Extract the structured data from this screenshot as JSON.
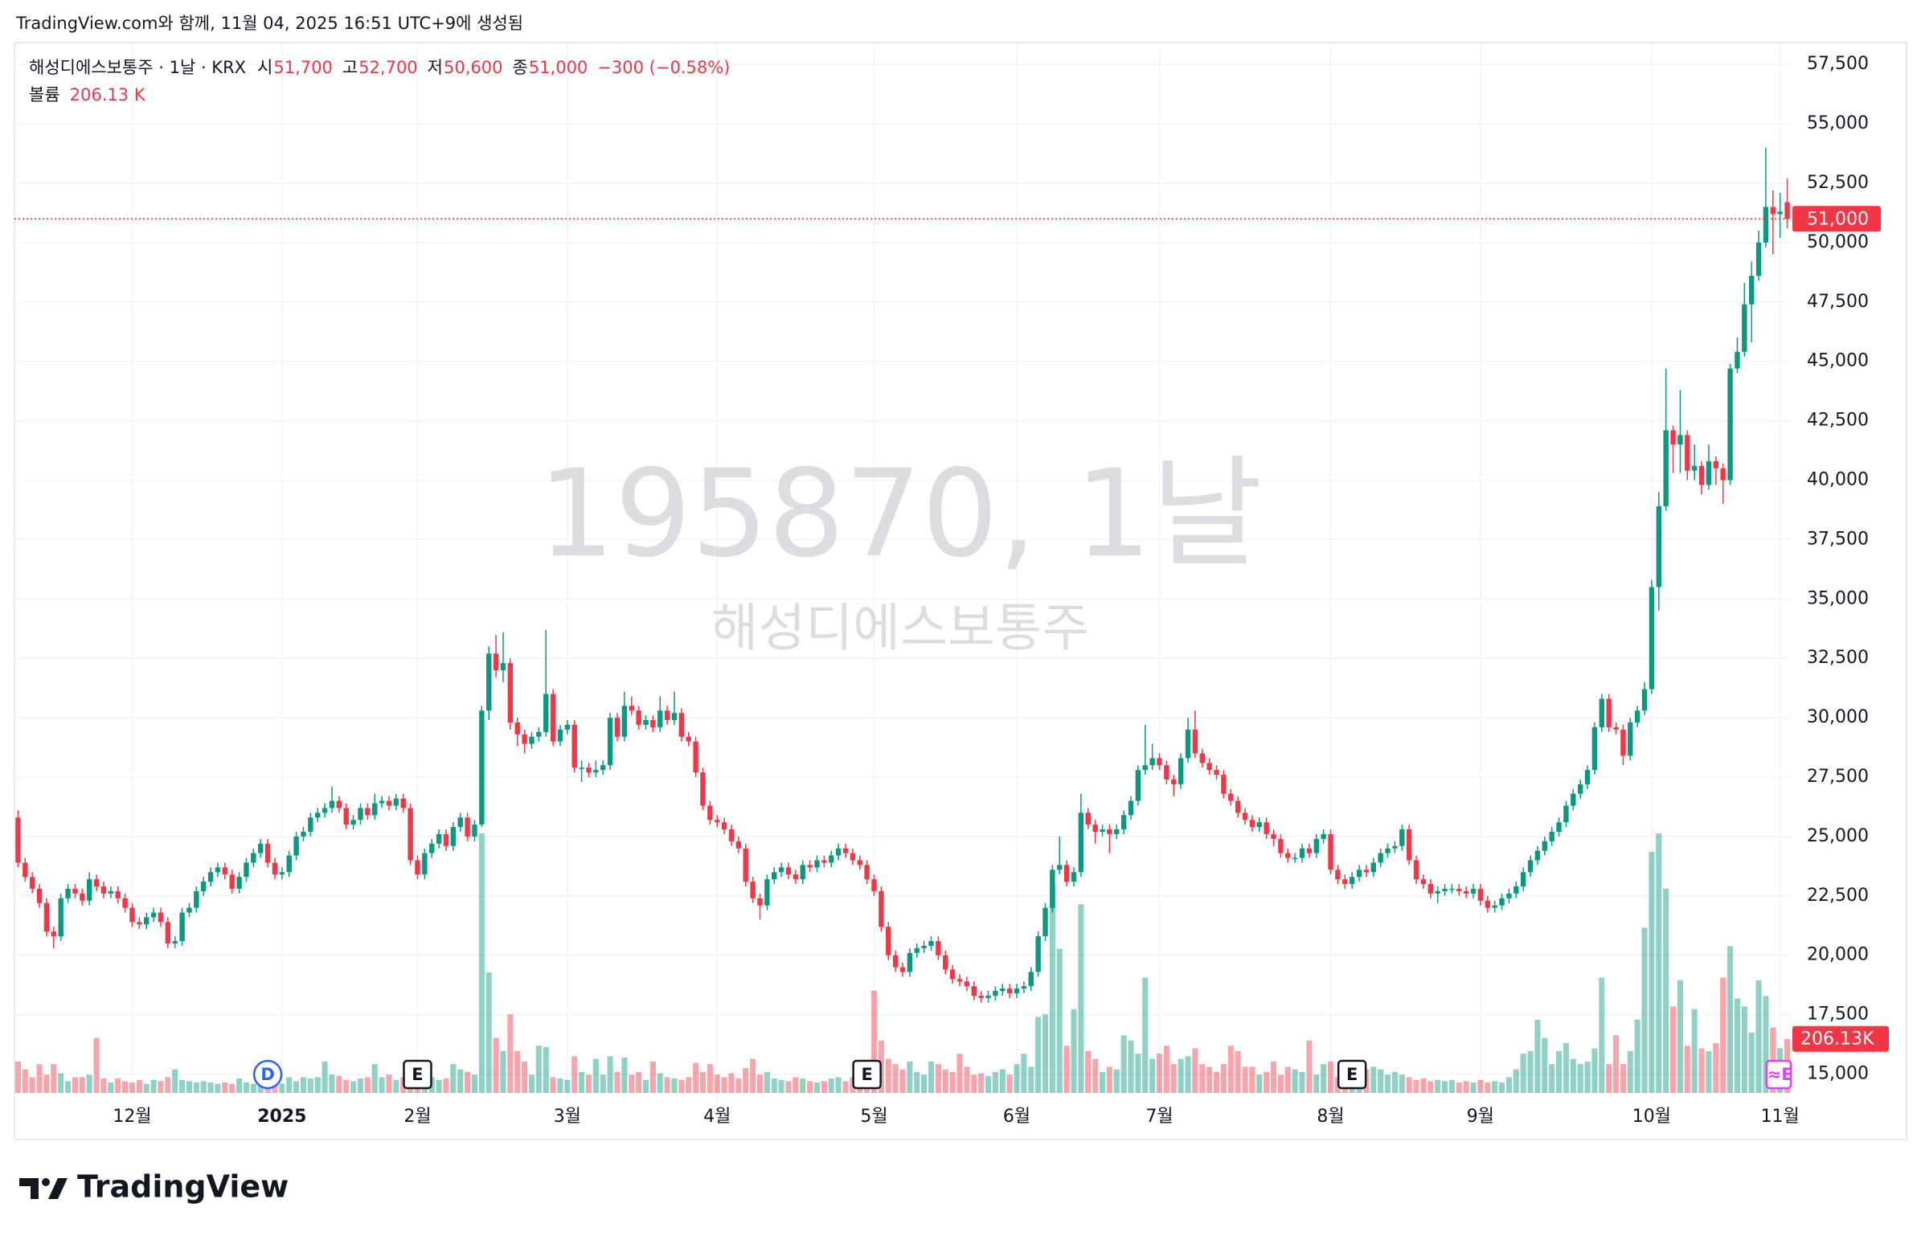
{
  "caption": "TradingView.com와 함께, 11월 04, 2025 16:51 UTC+9에 생성됨",
  "brand": "TradingView",
  "chart_data": {
    "type": "candlestick",
    "title": "해성디에스보통주 · 1날 · KRX",
    "watermark": "195870, 1날",
    "watermark_subtitle": "해성디에스보통주",
    "ohlc_legend": [
      {
        "prefix": "시",
        "label": "51,700"
      },
      {
        "prefix": "고",
        "label": "52,700"
      },
      {
        "prefix": "저",
        "label": "50,600"
      },
      {
        "prefix": "종",
        "label": "51,000"
      }
    ],
    "change_label": "−300 (−0.58%)",
    "volume_name": "볼륨",
    "volume_legend_label": "206.13 K",
    "volume_axis_label": "206.13K",
    "last_price_label": "51,000",
    "up_color": "#089981",
    "down_color": "#f23645",
    "grid": true,
    "xlim": [
      -0.5,
      248.5
    ],
    "ylim": [
      13800,
      58350
    ],
    "yticks": [
      {
        "value": 15000,
        "label": "15,000"
      },
      {
        "value": 17500,
        "label": "17,500"
      },
      {
        "value": 20000,
        "label": "20,000"
      },
      {
        "value": 22500,
        "label": "22,500"
      },
      {
        "value": 25000,
        "label": "25,000"
      },
      {
        "value": 27500,
        "label": "27,500"
      },
      {
        "value": 30000,
        "label": "30,000"
      },
      {
        "value": 32500,
        "label": "32,500"
      },
      {
        "value": 35000,
        "label": "35,000"
      },
      {
        "value": 37500,
        "label": "37,500"
      },
      {
        "value": 40000,
        "label": "40,000"
      },
      {
        "value": 42500,
        "label": "42,500"
      },
      {
        "value": 45000,
        "label": "45,000"
      },
      {
        "value": 47500,
        "label": "47,500"
      },
      {
        "value": 50000,
        "label": "50,000"
      },
      {
        "value": 52500,
        "label": "52,500"
      },
      {
        "value": 55000,
        "label": "55,000"
      },
      {
        "value": 57500,
        "label": "57,500"
      }
    ],
    "xticks": [
      {
        "value": 16,
        "label": "12월"
      },
      {
        "value": 37,
        "label": "2025"
      },
      {
        "value": 56,
        "label": "2월"
      },
      {
        "value": 77,
        "label": "3월"
      },
      {
        "value": 98,
        "label": "4월"
      },
      {
        "value": 120,
        "label": "5월"
      },
      {
        "value": 140,
        "label": "6월"
      },
      {
        "value": 160,
        "label": "7월"
      },
      {
        "value": 184,
        "label": "8월"
      },
      {
        "value": 205,
        "label": "9월"
      },
      {
        "value": 229,
        "label": "10월"
      },
      {
        "value": 247,
        "label": "11월"
      }
    ],
    "events": [
      {
        "label": "D",
        "index": 35,
        "color": "#2962ff"
      },
      {
        "label": "E",
        "index": 56,
        "color": "#131722"
      },
      {
        "label": "E",
        "index": 119,
        "color": "#131722"
      },
      {
        "label": "E",
        "index": 187,
        "color": "#131722"
      },
      {
        "label": "≈E",
        "index": 247,
        "color": "#e040fb"
      }
    ],
    "open": [
      25800,
      23900,
      23300,
      22800,
      22200,
      21000,
      20800,
      22400,
      22800,
      22600,
      22300,
      23200,
      22900,
      22600,
      22700,
      22400,
      22000,
      21400,
      21300,
      21600,
      21800,
      21400,
      20500,
      20600,
      21800,
      22000,
      22700,
      23100,
      23500,
      23700,
      23400,
      22800,
      23300,
      23900,
      24300,
      24700,
      23900,
      23400,
      23500,
      24200,
      25000,
      25200,
      25800,
      26000,
      26200,
      26500,
      26200,
      25500,
      25700,
      26200,
      25900,
      26400,
      26500,
      26300,
      26600,
      26200,
      24000,
      23400,
      24300,
      24700,
      25100,
      24600,
      25400,
      25800,
      25000,
      25500,
      30300,
      32700,
      32000,
      32300,
      29800,
      29300,
      28900,
      29200,
      29400,
      31000,
      29000,
      29500,
      29700,
      27900,
      27900,
      27700,
      27800,
      28000,
      30000,
      29200,
      30500,
      30300,
      29700,
      29900,
      29600,
      30300,
      29900,
      30200,
      29200,
      29000,
      27700,
      26300,
      25700,
      25600,
      25300,
      24800,
      24500,
      23100,
      22400,
      22100,
      23200,
      23500,
      23700,
      23400,
      23200,
      23800,
      23700,
      24000,
      23900,
      24200,
      24500,
      24300,
      24000,
      23800,
      23200,
      22700,
      21200,
      20000,
      19500,
      19300,
      20100,
      20300,
      20400,
      20600,
      20000,
      19400,
      19000,
      18900,
      18700,
      18300,
      18200,
      18300,
      18500,
      18600,
      18400,
      18600,
      18700,
      19300,
      20800,
      22000,
      23600,
      23800,
      23100,
      23500,
      26000,
      25500,
      25200,
      25300,
      25100,
      25300,
      25900,
      26500,
      27800,
      28000,
      28300,
      28000,
      27400,
      27200,
      28300,
      29500,
      28500,
      28100,
      27800,
      27600,
      26800,
      26500,
      26000,
      25700,
      25400,
      25600,
      25100,
      24900,
      24300,
      24100,
      24100,
      24500,
      24300,
      24900,
      25100,
      23600,
      23200,
      23000,
      23300,
      23600,
      23500,
      23900,
      24300,
      24500,
      24600,
      25300,
      24000,
      23200,
      23000,
      22600,
      22700,
      22800,
      22800,
      22700,
      22600,
      22800,
      22300,
      22000,
      22100,
      22400,
      22600,
      22900,
      23500,
      24000,
      24400,
      24800,
      25200,
      25600,
      26300,
      26800,
      27200,
      27800,
      29600,
      30800,
      29600,
      29500,
      28400,
      29800,
      30300,
      31200,
      35500,
      38900,
      42100,
      41500,
      41900,
      40400,
      40600,
      39800,
      40800,
      40500,
      40000,
      44700,
      45400,
      47400,
      48600,
      50000,
      51500,
      51200,
      51700
    ],
    "high": [
      26100,
      24100,
      23500,
      23000,
      22400,
      21200,
      22600,
      23000,
      23000,
      22800,
      23500,
      23400,
      23100,
      22900,
      22900,
      22600,
      22200,
      21600,
      21800,
      22000,
      22000,
      21600,
      20800,
      22000,
      22200,
      22900,
      23300,
      23700,
      23900,
      23900,
      23600,
      23500,
      24100,
      24500,
      24900,
      24900,
      24100,
      23700,
      24400,
      25200,
      25400,
      26000,
      26200,
      26400,
      27100,
      26700,
      26400,
      25900,
      26400,
      26400,
      26800,
      26700,
      26700,
      26800,
      26800,
      26400,
      24200,
      24500,
      24900,
      25300,
      25300,
      25600,
      26000,
      26000,
      25700,
      30500,
      33000,
      33500,
      33600,
      32500,
      30000,
      29500,
      29400,
      29600,
      33700,
      31200,
      29700,
      29900,
      29900,
      28200,
      28100,
      28200,
      28200,
      30200,
      30200,
      31100,
      30900,
      30500,
      30100,
      30100,
      30900,
      30500,
      31100,
      30400,
      29400,
      29200,
      27900,
      26500,
      25900,
      25800,
      25500,
      25000,
      24700,
      23300,
      22600,
      23400,
      23700,
      23900,
      23900,
      23600,
      24000,
      24000,
      24200,
      24200,
      24400,
      24700,
      24700,
      24500,
      24200,
      24000,
      23400,
      22900,
      21400,
      20200,
      19700,
      20300,
      20500,
      20600,
      20800,
      20800,
      20200,
      19600,
      19200,
      19100,
      18900,
      18500,
      18500,
      18700,
      18800,
      18800,
      18800,
      18900,
      19500,
      21000,
      22200,
      23800,
      25000,
      24000,
      23700,
      26800,
      26200,
      25700,
      25500,
      25500,
      25500,
      26100,
      26700,
      28000,
      29700,
      28900,
      28500,
      28200,
      27600,
      28500,
      30000,
      30300,
      28700,
      28300,
      28000,
      27800,
      27000,
      26700,
      26200,
      25900,
      25800,
      25800,
      25300,
      25100,
      24500,
      24300,
      24700,
      24700,
      25100,
      25300,
      25300,
      23800,
      23400,
      23500,
      23800,
      23800,
      24100,
      24500,
      24700,
      24800,
      25500,
      25500,
      24200,
      23400,
      23200,
      22900,
      23000,
      23000,
      23000,
      22900,
      23000,
      23000,
      22500,
      22300,
      22600,
      22800,
      23100,
      23700,
      24200,
      24600,
      25000,
      25400,
      25800,
      26500,
      27000,
      27400,
      28000,
      29800,
      31000,
      31000,
      29800,
      29700,
      30000,
      30500,
      31500,
      35800,
      39500,
      44700,
      42300,
      43800,
      42100,
      41500,
      40800,
      41500,
      41000,
      40700,
      44900,
      46000,
      48300,
      49200,
      50500,
      54000,
      52200,
      52100,
      52700
    ],
    "low": [
      23700,
      23100,
      22600,
      22000,
      20800,
      20300,
      20600,
      22200,
      22400,
      22100,
      22100,
      22700,
      22400,
      22400,
      22200,
      21800,
      21200,
      21100,
      21100,
      21400,
      21200,
      20300,
      20300,
      20400,
      21600,
      21800,
      22500,
      22900,
      23300,
      23200,
      22600,
      22600,
      23100,
      23700,
      24100,
      23700,
      23200,
      23200,
      23300,
      24000,
      24800,
      25000,
      25600,
      25800,
      26000,
      26000,
      25300,
      25300,
      25500,
      25700,
      25700,
      26200,
      26100,
      26100,
      26000,
      23800,
      23200,
      23200,
      24100,
      24500,
      24400,
      24400,
      25200,
      24800,
      24800,
      25400,
      29900,
      31700,
      31500,
      29500,
      28800,
      28500,
      28700,
      29000,
      29200,
      28800,
      28800,
      29300,
      27700,
      27300,
      27500,
      27500,
      27600,
      27800,
      29000,
      29000,
      30100,
      29500,
      29500,
      29400,
      29400,
      29700,
      29700,
      29000,
      28800,
      27500,
      26100,
      25500,
      25400,
      25100,
      24600,
      24300,
      22900,
      22200,
      21500,
      21900,
      23000,
      23300,
      23200,
      23000,
      23000,
      23500,
      23500,
      23700,
      23700,
      24000,
      24100,
      23800,
      23600,
      23000,
      22500,
      21000,
      19800,
      19300,
      19100,
      19100,
      19900,
      20100,
      20200,
      19800,
      19200,
      18800,
      18700,
      18500,
      18100,
      18000,
      18000,
      18100,
      18300,
      18200,
      18200,
      18400,
      18500,
      19100,
      20600,
      21800,
      23400,
      22900,
      22900,
      23300,
      25300,
      24700,
      25000,
      24300,
      24900,
      25100,
      25700,
      26300,
      27600,
      27800,
      27800,
      27200,
      26700,
      27000,
      28100,
      28300,
      27900,
      27600,
      27400,
      26600,
      26300,
      25800,
      25500,
      25200,
      25200,
      24900,
      24600,
      24100,
      23900,
      23900,
      23900,
      24100,
      24100,
      24700,
      23400,
      23000,
      22800,
      22800,
      23100,
      23300,
      23300,
      23700,
      24100,
      24300,
      24400,
      23800,
      23000,
      22800,
      22400,
      22200,
      22500,
      22600,
      22500,
      22400,
      22400,
      22100,
      21800,
      21800,
      21900,
      22200,
      22400,
      22700,
      23300,
      23800,
      24200,
      24600,
      25000,
      25400,
      26100,
      26600,
      27000,
      27600,
      29400,
      29400,
      29300,
      28000,
      28200,
      29600,
      30100,
      31000,
      34500,
      38700,
      40300,
      40300,
      40000,
      40000,
      39400,
      39600,
      39800,
      39000,
      39800,
      44500,
      45200,
      45800,
      48400,
      49800,
      49500,
      50200,
      50600
    ],
    "close": [
      23900,
      23300,
      22800,
      22200,
      21000,
      20800,
      22400,
      22800,
      22600,
      22300,
      23200,
      22900,
      22600,
      22700,
      22400,
      22000,
      21400,
      21300,
      21600,
      21800,
      21400,
      20500,
      20600,
      21800,
      22000,
      22700,
      23100,
      23500,
      23700,
      23400,
      22800,
      23300,
      23900,
      24300,
      24700,
      23900,
      23400,
      23500,
      24200,
      25000,
      25200,
      25800,
      26000,
      26200,
      26500,
      26200,
      25500,
      25700,
      26200,
      25900,
      26400,
      26500,
      26300,
      26600,
      26200,
      24000,
      23400,
      24300,
      24700,
      25100,
      24600,
      25400,
      25800,
      25000,
      25500,
      30300,
      32700,
      32000,
      32300,
      29800,
      29300,
      28900,
      29200,
      29400,
      31000,
      29000,
      29500,
      29700,
      27900,
      27900,
      27700,
      27800,
      28000,
      30000,
      29200,
      30500,
      30300,
      29700,
      29900,
      29600,
      30300,
      29900,
      30200,
      29200,
      29000,
      27700,
      26300,
      25700,
      25600,
      25300,
      24800,
      24500,
      23100,
      22400,
      22100,
      23200,
      23500,
      23700,
      23400,
      23200,
      23800,
      23700,
      24000,
      23900,
      24200,
      24500,
      24300,
      24000,
      23800,
      23200,
      22700,
      21200,
      20000,
      19500,
      19300,
      20100,
      20300,
      20400,
      20600,
      20000,
      19400,
      19000,
      18900,
      18700,
      18300,
      18200,
      18300,
      18500,
      18600,
      18400,
      18600,
      18700,
      19300,
      20800,
      22000,
      23600,
      23800,
      23100,
      23500,
      26000,
      25500,
      25200,
      25300,
      25100,
      25300,
      25900,
      26500,
      27800,
      28000,
      28300,
      28000,
      27400,
      27200,
      28300,
      29500,
      28500,
      28100,
      27800,
      27600,
      26800,
      26500,
      26000,
      25700,
      25400,
      25600,
      25100,
      24900,
      24300,
      24100,
      24100,
      24500,
      24300,
      24900,
      25100,
      23600,
      23200,
      23000,
      23300,
      23600,
      23500,
      23900,
      24300,
      24500,
      24600,
      25300,
      24000,
      23200,
      23000,
      22600,
      22700,
      22800,
      22800,
      22700,
      22600,
      22800,
      22300,
      22000,
      22100,
      22400,
      22600,
      22900,
      23500,
      24000,
      24400,
      24800,
      25200,
      25600,
      26300,
      26800,
      27200,
      27800,
      29600,
      30800,
      29600,
      29500,
      28400,
      29800,
      30300,
      31200,
      35500,
      38900,
      42100,
      41500,
      41900,
      40400,
      40600,
      39800,
      40800,
      40500,
      40000,
      44700,
      45400,
      47400,
      48600,
      50000,
      51500,
      51200,
      51300,
      51000
    ],
    "volume": [
      120000,
      90000,
      60000,
      110000,
      70000,
      110000,
      75000,
      45000,
      60000,
      60000,
      70000,
      210000,
      55000,
      40000,
      55000,
      45000,
      40000,
      50000,
      35000,
      50000,
      45000,
      60000,
      90000,
      50000,
      45000,
      40000,
      45000,
      40000,
      35000,
      40000,
      35000,
      55000,
      40000,
      35000,
      80000,
      50000,
      45000,
      35000,
      60000,
      45000,
      60000,
      55000,
      60000,
      120000,
      70000,
      65000,
      50000,
      45000,
      55000,
      60000,
      110000,
      60000,
      70000,
      50000,
      60000,
      100000,
      50000,
      45000,
      60000,
      50000,
      55000,
      110000,
      90000,
      80000,
      70000,
      990000,
      460000,
      210000,
      160000,
      300000,
      160000,
      120000,
      70000,
      180000,
      175000,
      60000,
      55000,
      50000,
      140000,
      80000,
      70000,
      130000,
      70000,
      140000,
      80000,
      135000,
      70000,
      80000,
      50000,
      120000,
      75000,
      60000,
      55000,
      50000,
      60000,
      115000,
      80000,
      110000,
      70000,
      60000,
      75000,
      55000,
      95000,
      130000,
      70000,
      80000,
      55000,
      50000,
      45000,
      60000,
      55000,
      45000,
      40000,
      45000,
      55000,
      60000,
      45000,
      60000,
      70000,
      95000,
      390000,
      200000,
      130000,
      110000,
      90000,
      120000,
      80000,
      70000,
      120000,
      110000,
      90000,
      80000,
      150000,
      100000,
      70000,
      75000,
      65000,
      80000,
      90000,
      70000,
      110000,
      150000,
      100000,
      290000,
      300000,
      790000,
      550000,
      180000,
      320000,
      720000,
      160000,
      130000,
      80000,
      100000,
      90000,
      220000,
      200000,
      150000,
      440000,
      130000,
      150000,
      180000,
      110000,
      130000,
      140000,
      170000,
      110000,
      100000,
      80000,
      110000,
      180000,
      160000,
      100000,
      100000,
      70000,
      80000,
      120000,
      70000,
      100000,
      90000,
      80000,
      200000,
      70000,
      110000,
      120000,
      60000,
      55000,
      80000,
      70000,
      90000,
      100000,
      90000,
      70000,
      80000,
      70000,
      60000,
      50000,
      55000,
      45000,
      50000,
      45000,
      50000,
      40000,
      45000,
      40000,
      50000,
      40000,
      45000,
      40000,
      60000,
      90000,
      150000,
      160000,
      280000,
      210000,
      110000,
      160000,
      190000,
      130000,
      110000,
      120000,
      170000,
      440000,
      110000,
      220000,
      110000,
      160000,
      280000,
      630000,
      920000,
      990000,
      780000,
      330000,
      430000,
      180000,
      320000,
      170000,
      160000,
      190000,
      440000,
      560000,
      360000,
      330000,
      230000,
      430000,
      370000,
      250000,
      170000,
      206130
    ]
  }
}
